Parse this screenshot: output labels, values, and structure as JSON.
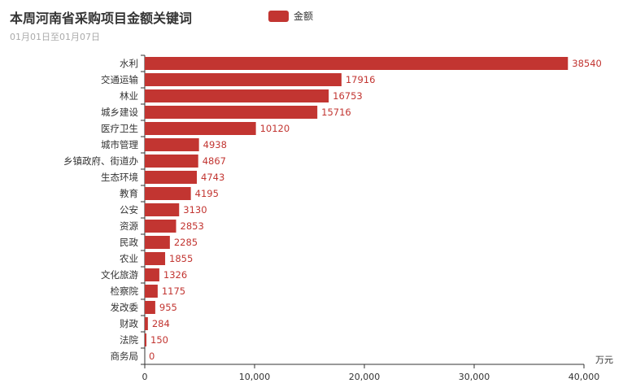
{
  "header": {
    "title": "本周河南省采购项目金额关键词",
    "subtitle": "01月01日至01月07日"
  },
  "legend": {
    "label": "金额"
  },
  "colors": {
    "bar": "#c23531",
    "axis": "#333333",
    "title": "#333333",
    "subtitle": "#aaaaaa"
  },
  "chart_data": {
    "type": "bar",
    "orientation": "horizontal",
    "categories": [
      "水利",
      "交通运输",
      "林业",
      "城乡建设",
      "医疗卫生",
      "城市管理",
      "乡镇政府、街道办",
      "生态环境",
      "教育",
      "公安",
      "资源",
      "民政",
      "农业",
      "文化旅游",
      "检察院",
      "发改委",
      "财政",
      "法院",
      "商务局"
    ],
    "series": [
      {
        "name": "金额",
        "values": [
          38540,
          17916,
          16753,
          15716,
          10120,
          4938,
          4867,
          4743,
          4195,
          3130,
          2853,
          2285,
          1855,
          1326,
          1175,
          955,
          284,
          150,
          0
        ]
      }
    ],
    "x_axis": {
      "name": "万元",
      "ticks": [
        0,
        10000,
        20000,
        30000,
        40000
      ],
      "tick_labels": [
        "0",
        "10,000",
        "20,000",
        "30,000",
        "40,000"
      ],
      "range": [
        0,
        40000
      ]
    },
    "grid": false,
    "legend_position": "top-center"
  }
}
